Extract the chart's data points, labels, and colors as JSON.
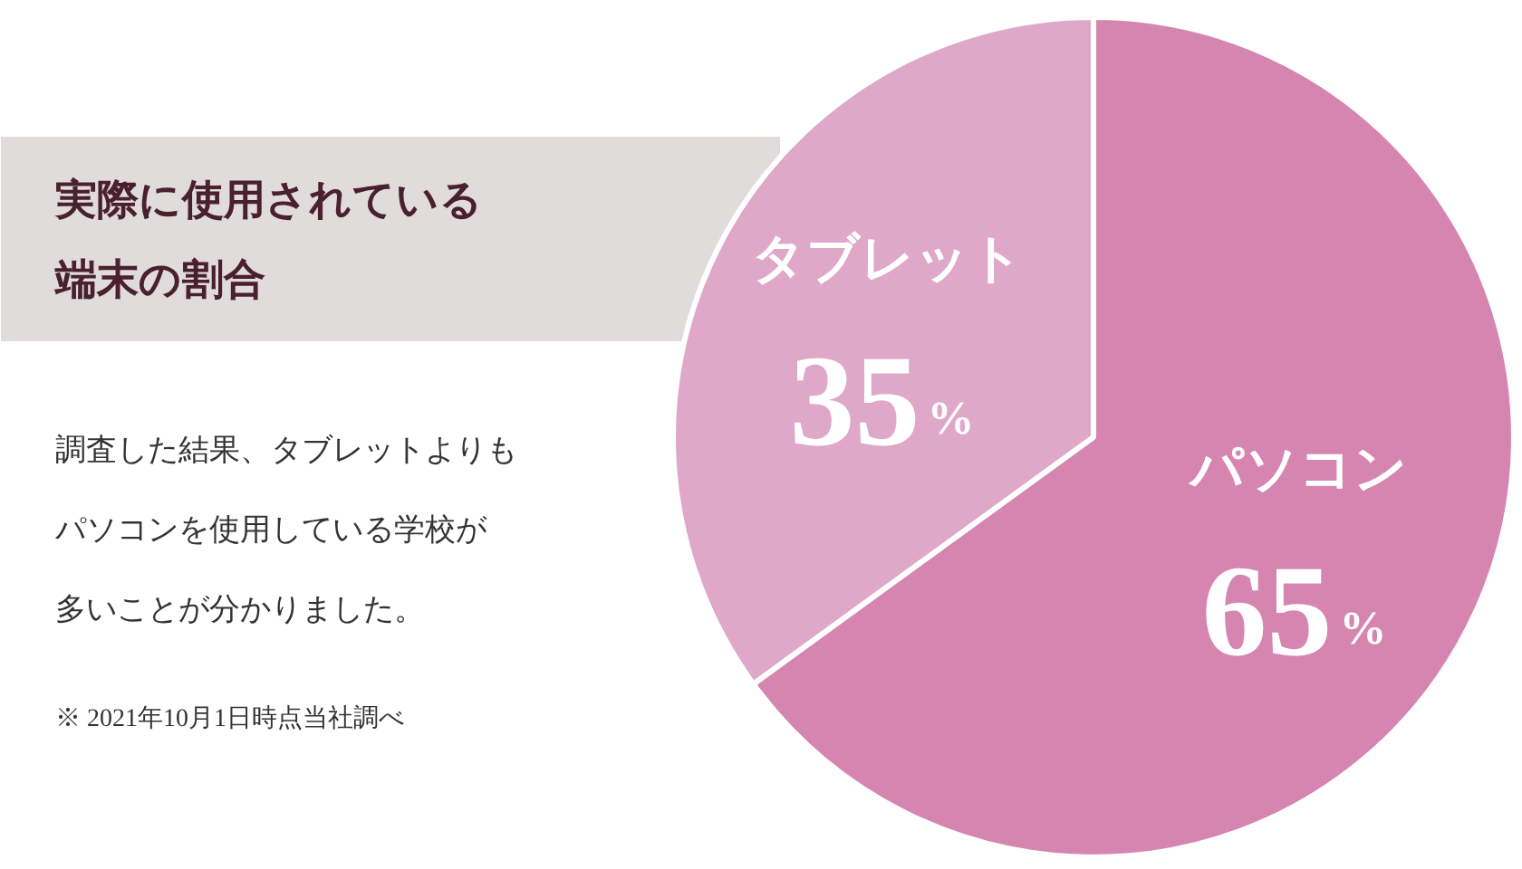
{
  "chart_data": {
    "type": "pie",
    "title": "実際に使用されている端末の割合",
    "categories": [
      "タブレット",
      "パソコン"
    ],
    "values": [
      35,
      65
    ],
    "colors": [
      "#dfa8c8",
      "#d585b0"
    ],
    "value_labels": [
      "35%",
      "65%"
    ],
    "annotations": [
      "調査した結果、タブレットよりも",
      "パソコンを使用している学校が",
      "多いことが分かりました。",
      "※ 2021年10月1日時点当社調べ"
    ]
  }
}
